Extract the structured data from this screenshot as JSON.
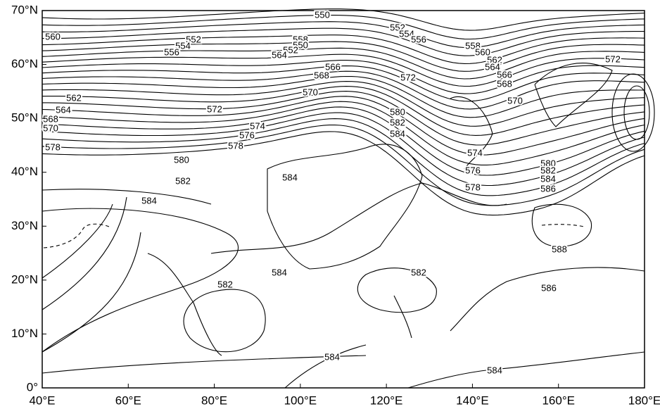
{
  "x_axis": {
    "labels": [
      "40°E",
      "60°E",
      "80°E",
      "100°E",
      "120°E",
      "140°E",
      "160°E",
      "180°E"
    ]
  },
  "y_axis": {
    "labels": [
      "70°N",
      "60°N",
      "50°N",
      "40°N",
      "30°N",
      "20°N",
      "10°N",
      "0°"
    ]
  },
  "contour_labels": [
    "550",
    "552",
    "554",
    "556",
    "558",
    "560",
    "562",
    "564",
    "566",
    "568",
    "570",
    "572",
    "560",
    "552",
    "554",
    "556",
    "558",
    "550",
    "552",
    "564",
    "566",
    "568",
    "572",
    "570",
    "562",
    "564",
    "568",
    "570",
    "578",
    "572",
    "574",
    "576",
    "578",
    "580",
    "582",
    "584",
    "580",
    "582",
    "584",
    "584",
    "574",
    "576",
    "578",
    "580",
    "582",
    "584",
    "586",
    "588",
    "586",
    "582",
    "584",
    "582",
    "584",
    "584"
  ]
}
